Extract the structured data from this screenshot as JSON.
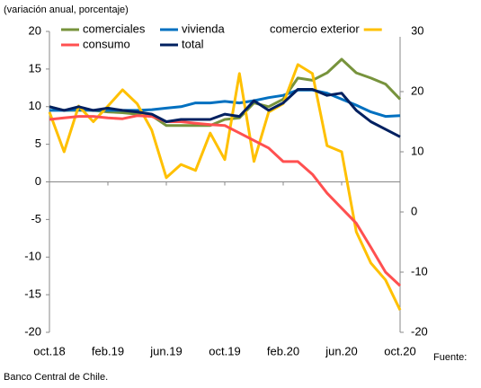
{
  "chart_data": {
    "type": "line",
    "subtitle": "(variación anual, porcentaje)",
    "source_label": "Fuente:",
    "source": "Banco Central de Chile.",
    "categories": [
      "oct.18",
      null,
      null,
      null,
      "feb.19",
      null,
      null,
      null,
      "jun.19",
      null,
      null,
      null,
      "oct.19",
      null,
      null,
      null,
      "feb.20",
      null,
      null,
      null,
      "jun.20",
      null,
      null,
      null,
      "oct.20"
    ],
    "series": [
      {
        "name": "comerciales",
        "color": "#77933c",
        "values": [
          10,
          9.5,
          9.5,
          9.5,
          9.3,
          9.2,
          9.0,
          8.8,
          7.5,
          7.5,
          7.5,
          7.5,
          8.3,
          8.5,
          10.5,
          10,
          11,
          13.8,
          13.5,
          14.5,
          16.3,
          14.5,
          13.8,
          13,
          11
        ]
      },
      {
        "name": "vivienda",
        "color": "#0070c0",
        "values": [
          9.5,
          9.5,
          9.6,
          9.5,
          9.5,
          9.5,
          9.5,
          9.6,
          9.8,
          10,
          10.5,
          10.5,
          10.7,
          10.5,
          10.8,
          11.2,
          11.5,
          12.2,
          12.2,
          11.8,
          11,
          10.2,
          9.3,
          8.7,
          8.8
        ]
      },
      {
        "name": "comercio exterior",
        "color": "#ffc000",
        "axis": "y2",
        "values": [
          16.6,
          10,
          17.6,
          15,
          17.6,
          20.3,
          18,
          13.6,
          5.7,
          7.9,
          6.9,
          13.1,
          8.7,
          23,
          8.4,
          16.6,
          18,
          24.5,
          23,
          11,
          10,
          -3.3,
          -8.5,
          -11.3,
          -16.3
        ]
      },
      {
        "name": "consumo",
        "color": "#ff5050",
        "values": [
          8.3,
          8.5,
          8.7,
          8.7,
          8.5,
          8.4,
          8.8,
          8.7,
          8.0,
          8.0,
          7.8,
          7.6,
          7.5,
          6.5,
          5.5,
          4.5,
          2.7,
          2.7,
          1,
          -1.5,
          -3.5,
          -5.5,
          -8.7,
          -12,
          -13.8
        ]
      },
      {
        "name": "total",
        "color": "#002060",
        "values": [
          10,
          9.5,
          10,
          9.5,
          9.8,
          9.5,
          9.3,
          9,
          8,
          8.3,
          8.3,
          8.3,
          9,
          8.7,
          10.8,
          9.5,
          10.5,
          12.3,
          12.3,
          11.5,
          11.8,
          9.5,
          8,
          7,
          6
        ]
      }
    ],
    "ylim": [
      -20,
      20
    ],
    "yticks": [
      20,
      15,
      10,
      5,
      0,
      -5,
      -10,
      -15,
      -20
    ],
    "y2lim": [
      -20,
      30
    ],
    "y2ticks": [
      30,
      20,
      10,
      0,
      -10,
      -20
    ]
  }
}
